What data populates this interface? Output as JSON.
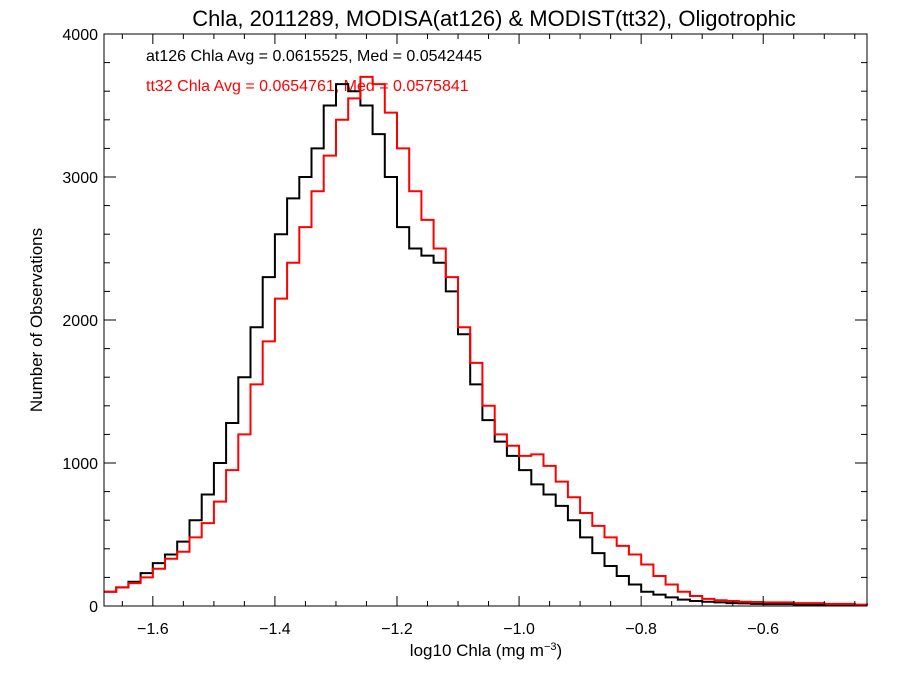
{
  "chart_data": {
    "type": "line",
    "title": "Chla, 2011289, MODISA(at126) & MODIST(tt32), Oligotrophic",
    "xlabel_main": "log10 Chla (mg m",
    "xlabel_sup": "−3",
    "xlabel_close": ")",
    "ylabel": "Number of Observations",
    "xlim": [
      -1.68,
      -0.43
    ],
    "ylim": [
      0,
      4000
    ],
    "xticks": [
      -1.6,
      -1.4,
      -1.2,
      -1.0,
      -0.8,
      -0.6
    ],
    "xtick_labels": [
      "−1.6",
      "−1.4",
      "−1.2",
      "−1.0",
      "−0.8",
      "−0.6"
    ],
    "yticks": [
      0,
      1000,
      2000,
      3000,
      4000
    ],
    "ytick_labels": [
      "0",
      "1000",
      "2000",
      "3000",
      "4000"
    ],
    "annotations": [
      {
        "text": "at126 Chla Avg = 0.0615525, Med = 0.0542445",
        "color": "#000000"
      },
      {
        "text": "tt32 Chla Avg = 0.0654761, Med = 0.0575841",
        "color": "#ff0000"
      }
    ],
    "series": [
      {
        "color": "#000000",
        "x": [
          -1.68,
          -1.66,
          -1.64,
          -1.62,
          -1.6,
          -1.58,
          -1.56,
          -1.54,
          -1.52,
          -1.5,
          -1.48,
          -1.46,
          -1.44,
          -1.42,
          -1.4,
          -1.38,
          -1.36,
          -1.34,
          -1.32,
          -1.3,
          -1.28,
          -1.26,
          -1.24,
          -1.22,
          -1.2,
          -1.18,
          -1.16,
          -1.14,
          -1.12,
          -1.1,
          -1.08,
          -1.06,
          -1.04,
          -1.02,
          -1.0,
          -0.98,
          -0.96,
          -0.94,
          -0.92,
          -0.9,
          -0.88,
          -0.86,
          -0.84,
          -0.82,
          -0.8,
          -0.78,
          -0.76,
          -0.74,
          -0.72,
          -0.7,
          -0.68,
          -0.66,
          -0.64,
          -0.62,
          -0.6,
          -0.55,
          -0.5,
          -0.45,
          -0.43
        ],
        "y": [
          100,
          130,
          170,
          230,
          300,
          360,
          450,
          600,
          780,
          1000,
          1280,
          1600,
          1950,
          2300,
          2600,
          2850,
          3000,
          3200,
          3500,
          3650,
          3600,
          3500,
          3300,
          3000,
          2650,
          2500,
          2450,
          2400,
          2200,
          1900,
          1550,
          1300,
          1150,
          1050,
          950,
          850,
          780,
          700,
          600,
          480,
          370,
          280,
          210,
          150,
          100,
          80,
          60,
          45,
          35,
          30,
          25,
          20,
          18,
          15,
          13,
          10,
          8,
          6,
          5
        ]
      },
      {
        "color": "#ff0000",
        "x": [
          -1.68,
          -1.66,
          -1.64,
          -1.62,
          -1.6,
          -1.58,
          -1.56,
          -1.54,
          -1.52,
          -1.5,
          -1.48,
          -1.46,
          -1.44,
          -1.42,
          -1.4,
          -1.38,
          -1.36,
          -1.34,
          -1.32,
          -1.3,
          -1.28,
          -1.26,
          -1.24,
          -1.22,
          -1.2,
          -1.18,
          -1.16,
          -1.14,
          -1.12,
          -1.1,
          -1.08,
          -1.06,
          -1.04,
          -1.02,
          -1.0,
          -0.98,
          -0.96,
          -0.94,
          -0.92,
          -0.9,
          -0.88,
          -0.86,
          -0.84,
          -0.82,
          -0.8,
          -0.78,
          -0.76,
          -0.74,
          -0.72,
          -0.7,
          -0.68,
          -0.66,
          -0.64,
          -0.62,
          -0.6,
          -0.55,
          -0.5,
          -0.45,
          -0.43
        ],
        "y": [
          100,
          130,
          160,
          200,
          260,
          330,
          380,
          480,
          580,
          730,
          950,
          1200,
          1550,
          1850,
          2150,
          2400,
          2650,
          2900,
          3150,
          3400,
          3550,
          3700,
          3650,
          3450,
          3200,
          2900,
          2700,
          2500,
          2300,
          1950,
          1700,
          1400,
          1200,
          1120,
          1050,
          1060,
          980,
          870,
          760,
          650,
          560,
          480,
          420,
          360,
          290,
          210,
          150,
          100,
          70,
          50,
          40,
          35,
          30,
          28,
          25,
          20,
          15,
          10,
          8
        ]
      }
    ]
  }
}
